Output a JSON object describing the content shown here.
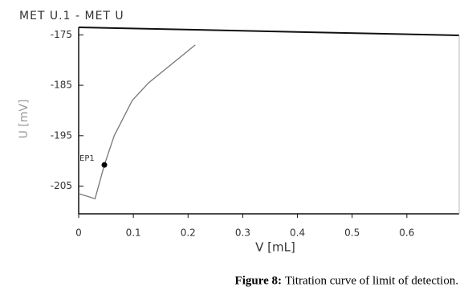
{
  "chart_data": {
    "type": "line",
    "title": "MET U.1 - MET U",
    "x_label": "V [mL]",
    "y_label": "U [mV]",
    "x": [
      0,
      0.03,
      0.047,
      0.065,
      0.098,
      0.128,
      0.213
    ],
    "series": [
      {
        "color": "#777777",
        "values": [
          -206.5,
          -207.5,
          -200.8,
          -195,
          -188,
          -184.5,
          -177
        ]
      }
    ],
    "marker": {
      "label": "EP1",
      "x": 0.047,
      "y": -200.8
    },
    "xlim": [
      0,
      0.7
    ],
    "ylim": [
      -210.5,
      -173.5
    ],
    "xticks": [
      0,
      0.1,
      0.2,
      0.3,
      0.4,
      0.5,
      0.6
    ],
    "yticks": [
      -175,
      -185,
      -195,
      -205
    ],
    "caption_label": "Figure 8:",
    "caption_text": "Titration curve of limit of detection."
  }
}
